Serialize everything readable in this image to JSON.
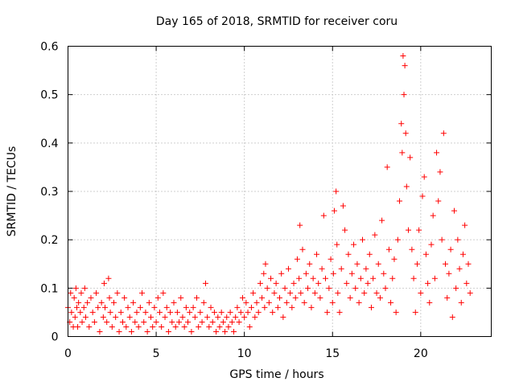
{
  "chart_data": {
    "type": "scatter",
    "title": "Day 165 of 2018, SRMTID for receiver coru",
    "xlabel": "GPS time / hours",
    "ylabel": "SRMTID / TECUs",
    "xlim": [
      0,
      24
    ],
    "ylim": [
      0,
      0.6
    ],
    "xticks": [
      0,
      5,
      10,
      15,
      20
    ],
    "yticks": [
      0,
      0.1,
      0.2,
      0.3,
      0.4,
      0.5,
      0.6
    ],
    "xtick_labels": [
      "0",
      "5",
      "10",
      "15",
      "20"
    ],
    "ytick_labels": [
      "0",
      "0.1",
      "0.2",
      "0.3",
      "0.4",
      "0.5",
      "0.6"
    ],
    "grid": true,
    "marker": "+",
    "color": "#ff0000",
    "series": [
      {
        "name": "SRMTID",
        "points": [
          [
            0.0,
            0.06
          ],
          [
            0.1,
            0.03
          ],
          [
            0.15,
            0.09
          ],
          [
            0.2,
            0.05
          ],
          [
            0.3,
            0.02
          ],
          [
            0.35,
            0.08
          ],
          [
            0.4,
            0.04
          ],
          [
            0.45,
            0.1
          ],
          [
            0.5,
            0.06
          ],
          [
            0.55,
            0.02
          ],
          [
            0.6,
            0.07
          ],
          [
            0.7,
            0.05
          ],
          [
            0.75,
            0.09
          ],
          [
            0.8,
            0.03
          ],
          [
            0.9,
            0.06
          ],
          [
            0.95,
            0.1
          ],
          [
            1.0,
            0.04
          ],
          [
            1.1,
            0.07
          ],
          [
            1.2,
            0.02
          ],
          [
            1.3,
            0.08
          ],
          [
            1.4,
            0.05
          ],
          [
            1.5,
            0.03
          ],
          [
            1.6,
            0.09
          ],
          [
            1.7,
            0.06
          ],
          [
            1.8,
            0.01
          ],
          [
            1.9,
            0.07
          ],
          [
            2.0,
            0.04
          ],
          [
            2.05,
            0.11
          ],
          [
            2.1,
            0.06
          ],
          [
            2.2,
            0.03
          ],
          [
            2.3,
            0.12
          ],
          [
            2.35,
            0.08
          ],
          [
            2.4,
            0.05
          ],
          [
            2.5,
            0.02
          ],
          [
            2.6,
            0.07
          ],
          [
            2.7,
            0.04
          ],
          [
            2.8,
            0.09
          ],
          [
            2.9,
            0.01
          ],
          [
            3.0,
            0.05
          ],
          [
            3.1,
            0.03
          ],
          [
            3.2,
            0.08
          ],
          [
            3.3,
            0.02
          ],
          [
            3.4,
            0.06
          ],
          [
            3.5,
            0.04
          ],
          [
            3.6,
            0.01
          ],
          [
            3.7,
            0.07
          ],
          [
            3.8,
            0.03
          ],
          [
            3.9,
            0.05
          ],
          [
            4.0,
            0.02
          ],
          [
            4.1,
            0.06
          ],
          [
            4.2,
            0.09
          ],
          [
            4.3,
            0.03
          ],
          [
            4.4,
            0.05
          ],
          [
            4.5,
            0.01
          ],
          [
            4.6,
            0.07
          ],
          [
            4.7,
            0.04
          ],
          [
            4.8,
            0.02
          ],
          [
            4.9,
            0.06
          ],
          [
            5.0,
            0.03
          ],
          [
            5.1,
            0.08
          ],
          [
            5.2,
            0.05
          ],
          [
            5.3,
            0.02
          ],
          [
            5.4,
            0.09
          ],
          [
            5.5,
            0.04
          ],
          [
            5.6,
            0.06
          ],
          [
            5.7,
            0.01
          ],
          [
            5.8,
            0.05
          ],
          [
            5.9,
            0.03
          ],
          [
            6.0,
            0.07
          ],
          [
            6.1,
            0.02
          ],
          [
            6.2,
            0.05
          ],
          [
            6.3,
            0.03
          ],
          [
            6.4,
            0.08
          ],
          [
            6.5,
            0.04
          ],
          [
            6.6,
            0.02
          ],
          [
            6.7,
            0.06
          ],
          [
            6.8,
            0.03
          ],
          [
            6.9,
            0.05
          ],
          [
            7.0,
            0.01
          ],
          [
            7.1,
            0.06
          ],
          [
            7.2,
            0.04
          ],
          [
            7.3,
            0.08
          ],
          [
            7.4,
            0.02
          ],
          [
            7.5,
            0.05
          ],
          [
            7.6,
            0.03
          ],
          [
            7.7,
            0.07
          ],
          [
            7.8,
            0.11
          ],
          [
            7.9,
            0.04
          ],
          [
            8.0,
            0.02
          ],
          [
            8.1,
            0.06
          ],
          [
            8.2,
            0.03
          ],
          [
            8.3,
            0.05
          ],
          [
            8.4,
            0.01
          ],
          [
            8.5,
            0.04
          ],
          [
            8.6,
            0.02
          ],
          [
            8.7,
            0.05
          ],
          [
            8.8,
            0.03
          ],
          [
            8.9,
            0.01
          ],
          [
            9.0,
            0.04
          ],
          [
            9.1,
            0.02
          ],
          [
            9.2,
            0.05
          ],
          [
            9.3,
            0.03
          ],
          [
            9.4,
            0.01
          ],
          [
            9.5,
            0.04
          ],
          [
            9.6,
            0.06
          ],
          [
            9.7,
            0.03
          ],
          [
            9.8,
            0.05
          ],
          [
            9.9,
            0.08
          ],
          [
            10.0,
            0.04
          ],
          [
            10.1,
            0.07
          ],
          [
            10.2,
            0.05
          ],
          [
            10.3,
            0.02
          ],
          [
            10.4,
            0.06
          ],
          [
            10.5,
            0.09
          ],
          [
            10.6,
            0.04
          ],
          [
            10.7,
            0.07
          ],
          [
            10.8,
            0.05
          ],
          [
            10.9,
            0.11
          ],
          [
            11.0,
            0.08
          ],
          [
            11.1,
            0.13
          ],
          [
            11.15,
            0.06
          ],
          [
            11.2,
            0.15
          ],
          [
            11.3,
            0.1
          ],
          [
            11.4,
            0.07
          ],
          [
            11.5,
            0.12
          ],
          [
            11.6,
            0.05
          ],
          [
            11.7,
            0.09
          ],
          [
            11.8,
            0.11
          ],
          [
            11.9,
            0.06
          ],
          [
            12.0,
            0.08
          ],
          [
            12.1,
            0.13
          ],
          [
            12.2,
            0.04
          ],
          [
            12.3,
            0.1
          ],
          [
            12.4,
            0.07
          ],
          [
            12.5,
            0.14
          ],
          [
            12.6,
            0.09
          ],
          [
            12.7,
            0.06
          ],
          [
            12.8,
            0.11
          ],
          [
            12.9,
            0.08
          ],
          [
            13.0,
            0.16
          ],
          [
            13.1,
            0.12
          ],
          [
            13.15,
            0.23
          ],
          [
            13.2,
            0.09
          ],
          [
            13.3,
            0.18
          ],
          [
            13.4,
            0.07
          ],
          [
            13.5,
            0.13
          ],
          [
            13.6,
            0.1
          ],
          [
            13.7,
            0.15
          ],
          [
            13.8,
            0.06
          ],
          [
            13.9,
            0.12
          ],
          [
            14.0,
            0.09
          ],
          [
            14.1,
            0.17
          ],
          [
            14.2,
            0.11
          ],
          [
            14.3,
            0.08
          ],
          [
            14.4,
            0.14
          ],
          [
            14.5,
            0.25
          ],
          [
            14.6,
            0.12
          ],
          [
            14.7,
            0.05
          ],
          [
            14.8,
            0.1
          ],
          [
            14.9,
            0.16
          ],
          [
            15.0,
            0.07
          ],
          [
            15.05,
            0.13
          ],
          [
            15.1,
            0.26
          ],
          [
            15.2,
            0.3
          ],
          [
            15.25,
            0.19
          ],
          [
            15.3,
            0.09
          ],
          [
            15.4,
            0.05
          ],
          [
            15.5,
            0.14
          ],
          [
            15.6,
            0.27
          ],
          [
            15.7,
            0.22
          ],
          [
            15.8,
            0.11
          ],
          [
            15.9,
            0.17
          ],
          [
            16.0,
            0.08
          ],
          [
            16.1,
            0.13
          ],
          [
            16.2,
            0.19
          ],
          [
            16.3,
            0.1
          ],
          [
            16.4,
            0.15
          ],
          [
            16.5,
            0.07
          ],
          [
            16.6,
            0.12
          ],
          [
            16.7,
            0.2
          ],
          [
            16.8,
            0.09
          ],
          [
            16.9,
            0.14
          ],
          [
            17.0,
            0.11
          ],
          [
            17.1,
            0.17
          ],
          [
            17.2,
            0.06
          ],
          [
            17.3,
            0.12
          ],
          [
            17.4,
            0.21
          ],
          [
            17.5,
            0.09
          ],
          [
            17.6,
            0.15
          ],
          [
            17.7,
            0.08
          ],
          [
            17.8,
            0.24
          ],
          [
            17.9,
            0.13
          ],
          [
            18.0,
            0.1
          ],
          [
            18.1,
            0.35
          ],
          [
            18.2,
            0.18
          ],
          [
            18.3,
            0.07
          ],
          [
            18.4,
            0.12
          ],
          [
            18.5,
            0.16
          ],
          [
            18.6,
            0.05
          ],
          [
            18.7,
            0.2
          ],
          [
            18.8,
            0.28
          ],
          [
            18.9,
            0.44
          ],
          [
            18.95,
            0.38
          ],
          [
            19.0,
            0.58
          ],
          [
            19.05,
            0.5
          ],
          [
            19.1,
            0.56
          ],
          [
            19.15,
            0.42
          ],
          [
            19.2,
            0.31
          ],
          [
            19.3,
            0.22
          ],
          [
            19.4,
            0.37
          ],
          [
            19.5,
            0.18
          ],
          [
            19.6,
            0.12
          ],
          [
            19.7,
            0.05
          ],
          [
            19.8,
            0.15
          ],
          [
            19.9,
            0.22
          ],
          [
            20.0,
            0.09
          ],
          [
            20.1,
            0.29
          ],
          [
            20.2,
            0.33
          ],
          [
            20.3,
            0.17
          ],
          [
            20.4,
            0.11
          ],
          [
            20.5,
            0.07
          ],
          [
            20.6,
            0.19
          ],
          [
            20.7,
            0.25
          ],
          [
            20.8,
            0.12
          ],
          [
            20.9,
            0.38
          ],
          [
            21.0,
            0.28
          ],
          [
            21.1,
            0.34
          ],
          [
            21.2,
            0.2
          ],
          [
            21.3,
            0.42
          ],
          [
            21.4,
            0.15
          ],
          [
            21.5,
            0.08
          ],
          [
            21.6,
            0.13
          ],
          [
            21.7,
            0.18
          ],
          [
            21.8,
            0.04
          ],
          [
            21.9,
            0.26
          ],
          [
            22.0,
            0.1
          ],
          [
            22.1,
            0.2
          ],
          [
            22.2,
            0.14
          ],
          [
            22.3,
            0.07
          ],
          [
            22.4,
            0.17
          ],
          [
            22.5,
            0.23
          ],
          [
            22.6,
            0.11
          ],
          [
            22.7,
            0.15
          ],
          [
            22.8,
            0.09
          ]
        ]
      }
    ]
  }
}
